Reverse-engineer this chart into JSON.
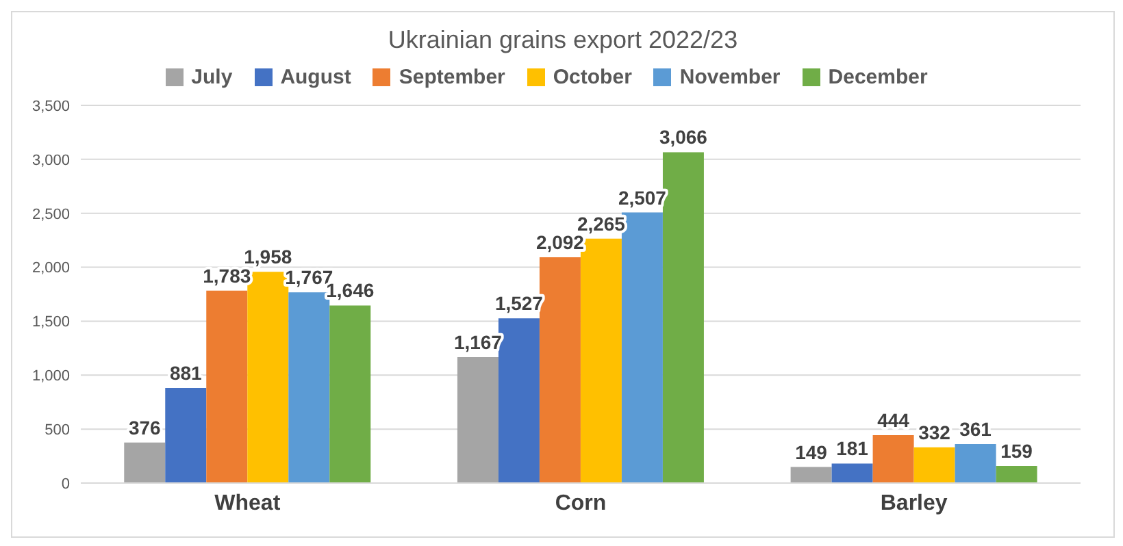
{
  "chart_data": {
    "type": "bar",
    "title": "Ukrainian grains export 2022/23",
    "categories": [
      "Wheat",
      "Corn",
      "Barley"
    ],
    "series": [
      {
        "name": "July",
        "color": "#a5a5a5",
        "values": [
          376,
          1167,
          149
        ],
        "value_labels": [
          "376",
          "1,167",
          "149"
        ]
      },
      {
        "name": "August",
        "color": "#4472c4",
        "values": [
          881,
          1527,
          181
        ],
        "value_labels": [
          "881",
          "1,527",
          "181"
        ]
      },
      {
        "name": "September",
        "color": "#ed7d31",
        "values": [
          1783,
          2092,
          444
        ],
        "value_labels": [
          "1,783",
          "2,092",
          "444"
        ]
      },
      {
        "name": "October",
        "color": "#ffc000",
        "values": [
          1958,
          2265,
          332
        ],
        "value_labels": [
          "1,958",
          "2,265",
          "332"
        ]
      },
      {
        "name": "November",
        "color": "#5b9bd5",
        "values": [
          1767,
          2507,
          361
        ],
        "value_labels": [
          "1,767",
          "2,507",
          "361"
        ]
      },
      {
        "name": "December",
        "color": "#70ad47",
        "values": [
          1646,
          3066,
          159
        ],
        "value_labels": [
          "1,646",
          "3,066",
          "159"
        ]
      }
    ],
    "ylim": [
      0,
      3500
    ],
    "yticks": [
      0,
      500,
      {
        "value": 1000,
        "label": "1,000"
      },
      {
        "value": 1500,
        "label": "1,500"
      },
      {
        "value": 2000,
        "label": "2,000"
      },
      {
        "value": 2500,
        "label": "2,500"
      },
      {
        "value": 3000,
        "label": "3,000"
      },
      {
        "value": 3500,
        "label": "3,500"
      }
    ],
    "grid": "y",
    "legend": "top"
  }
}
